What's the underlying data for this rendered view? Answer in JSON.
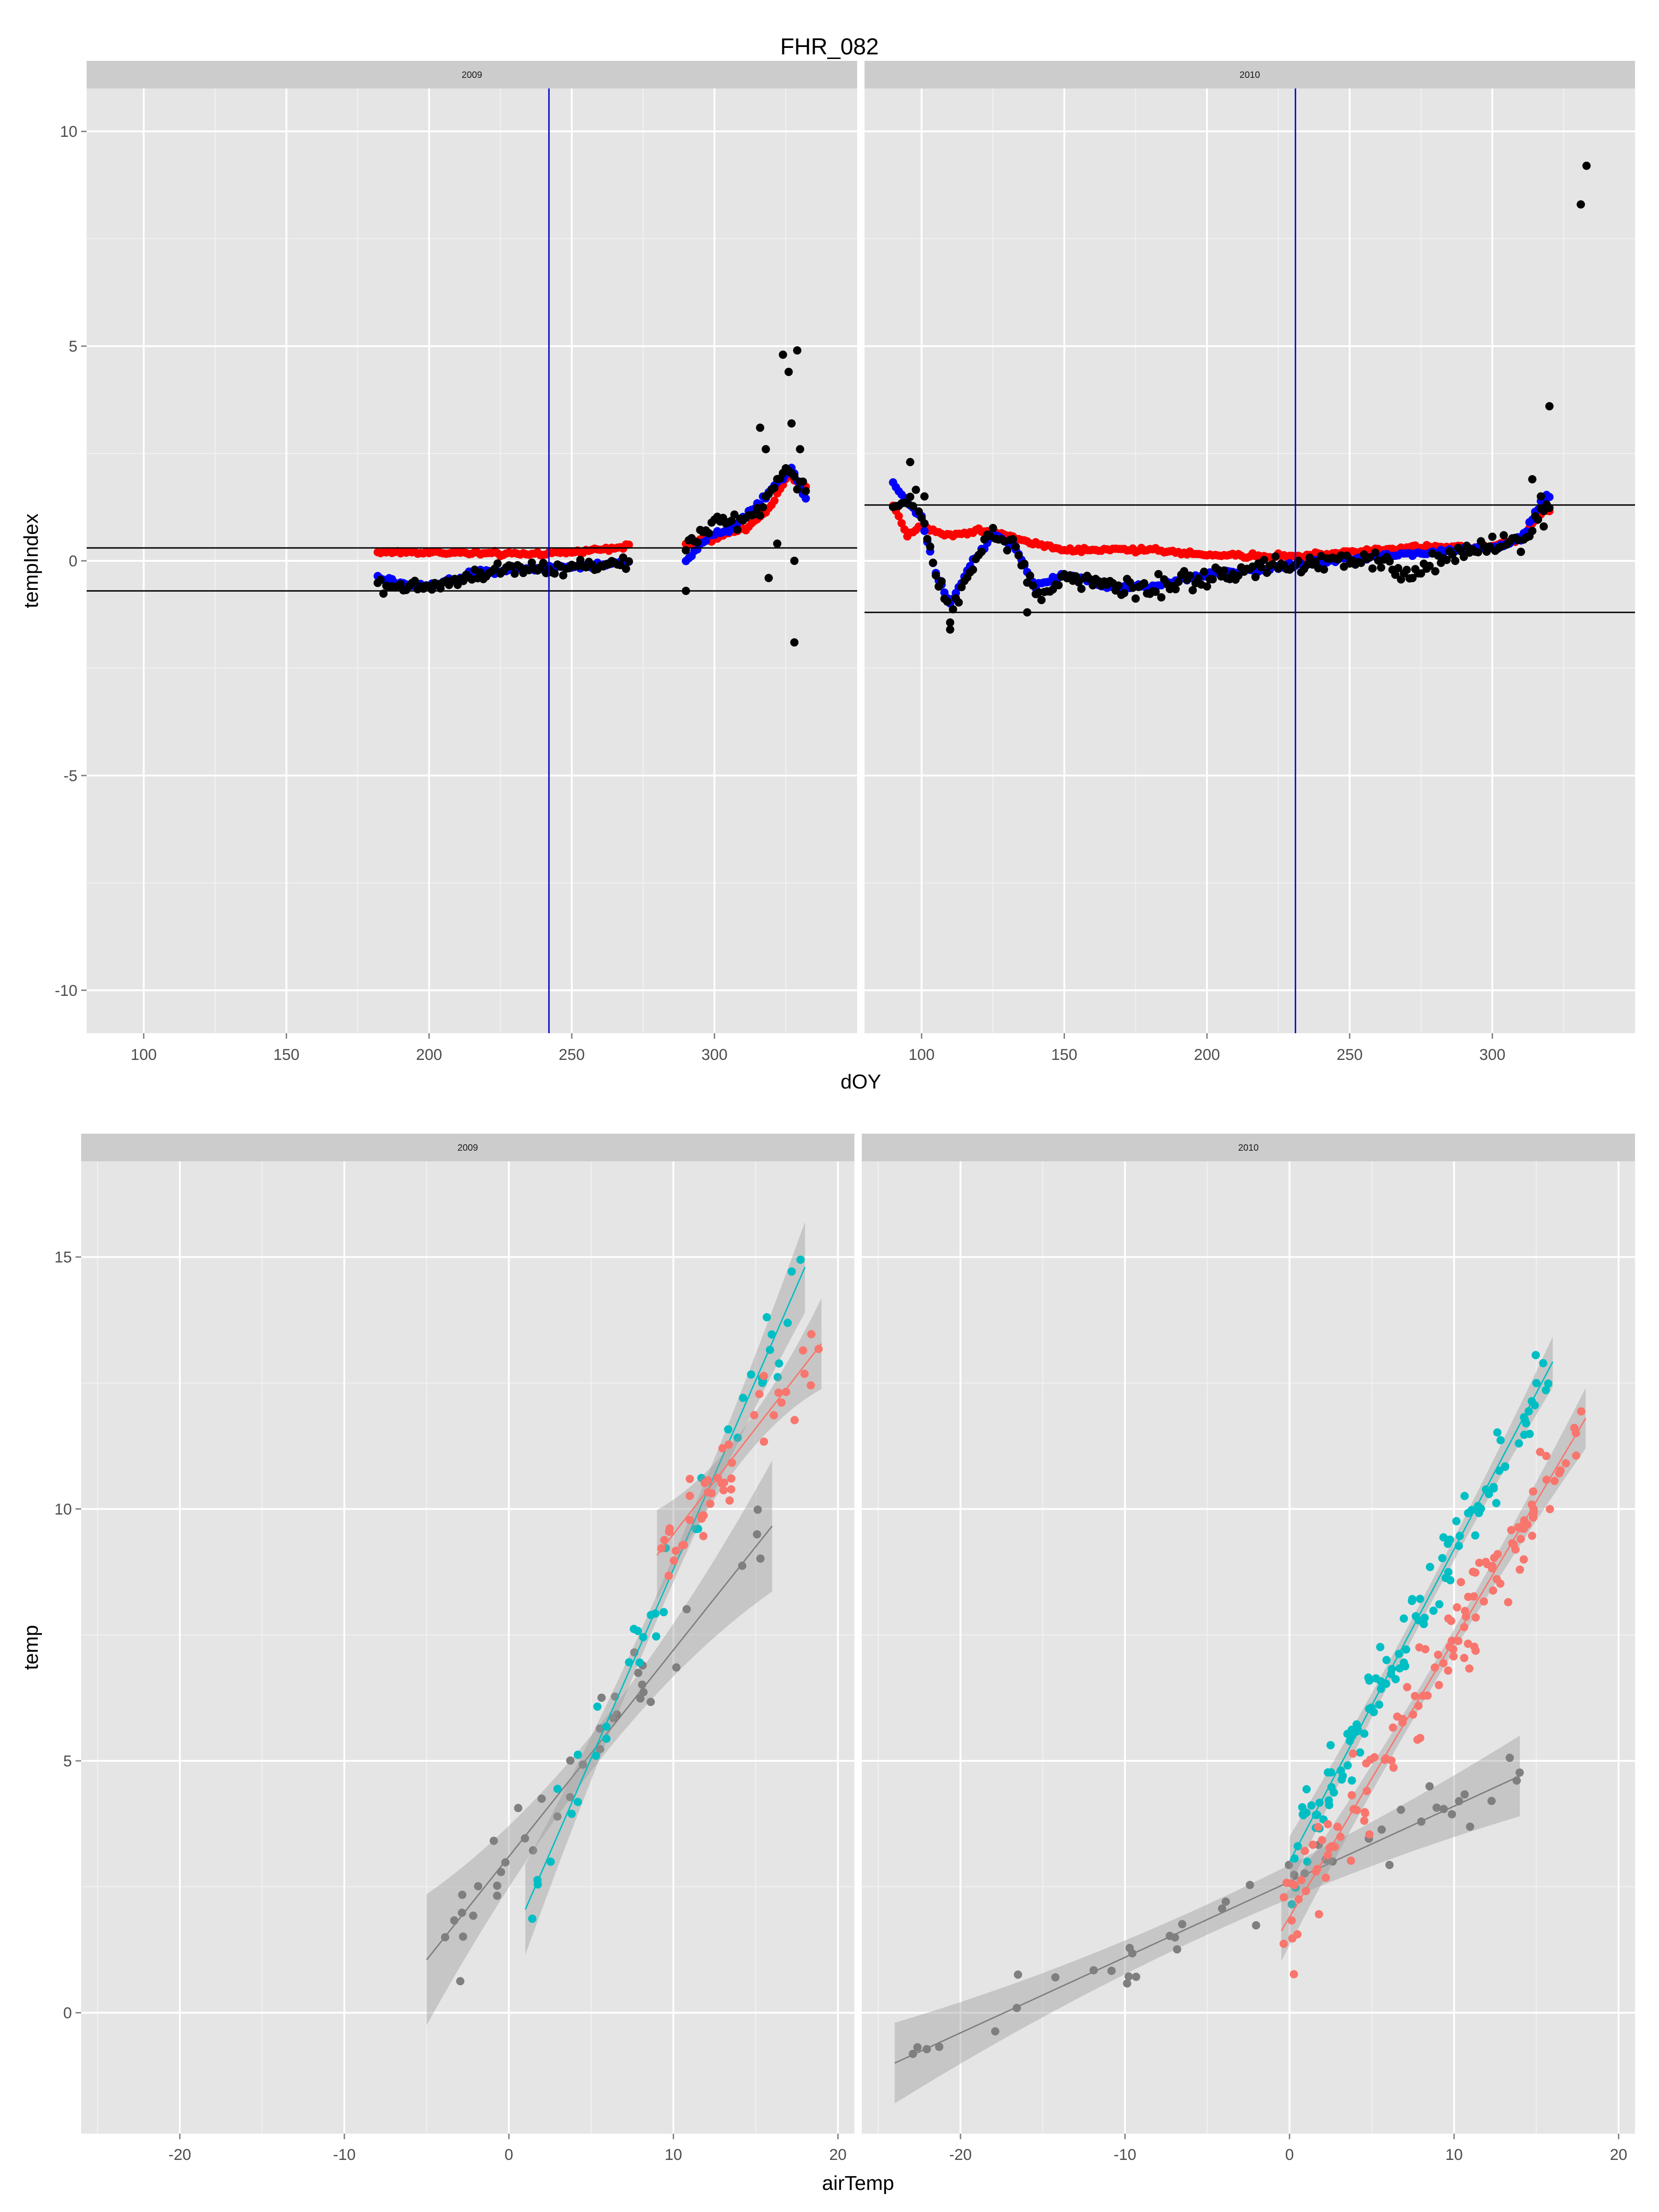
{
  "figure_title": "FHR_082",
  "colors": {
    "panel_bg": "#E5E5E5",
    "strip_bg": "#CCCCCC",
    "grid_major": "#FFFFFF",
    "grid_minor": "#F2F2F2",
    "tick_text": "#4D4D4D",
    "ref_line": "#000000",
    "vline": "#0000CC",
    "series_red": "#FF0000",
    "series_blue": "#0000FF",
    "series_black": "#000000",
    "teal": "#00BFC4",
    "salmon": "#F8766D",
    "gray": "#7F7F7F",
    "band": "#999999"
  },
  "chart_data": [
    {
      "type": "scatter",
      "xlabel": "dOY",
      "ylabel": "tempIndex",
      "xlim": [
        80,
        350
      ],
      "ylim": [
        -11,
        11
      ],
      "x_ticks": [
        100,
        150,
        200,
        250,
        300
      ],
      "y_ticks": [
        -10,
        -5,
        0,
        5,
        10
      ],
      "grid": true,
      "facets": [
        {
          "label": "2009",
          "ranges": [
            [
              182,
              270
            ],
            [
              290,
              332
            ]
          ],
          "hlines": [
            0.3,
            -0.7
          ],
          "vline": 242,
          "anchors_red": [
            [
              182,
              0.2
            ],
            [
              200,
              0.2
            ],
            [
              230,
              0.15
            ],
            [
              250,
              0.2
            ],
            [
              270,
              0.35
            ],
            [
              290,
              0.4
            ],
            [
              300,
              0.5
            ],
            [
              312,
              0.8
            ],
            [
              320,
              1.3
            ],
            [
              326,
              2.0
            ],
            [
              332,
              1.7
            ]
          ],
          "anchors_blue": [
            [
              182,
              -0.4
            ],
            [
              195,
              -0.6
            ],
            [
              205,
              -0.5
            ],
            [
              215,
              -0.3
            ],
            [
              230,
              -0.2
            ],
            [
              245,
              -0.15
            ],
            [
              260,
              -0.1
            ],
            [
              270,
              0.0
            ],
            [
              290,
              0.0
            ],
            [
              298,
              0.6
            ],
            [
              305,
              0.7
            ],
            [
              315,
              1.3
            ],
            [
              322,
              1.8
            ],
            [
              327,
              2.2
            ],
            [
              332,
              1.4
            ]
          ],
          "anchors_black": [
            [
              182,
              -0.5
            ],
            [
              195,
              -0.6
            ],
            [
              205,
              -0.5
            ],
            [
              215,
              -0.35
            ],
            [
              230,
              -0.15
            ],
            [
              245,
              -0.15
            ],
            [
              260,
              -0.1
            ],
            [
              270,
              0.0
            ],
            [
              290,
              0.3
            ],
            [
              300,
              0.9
            ],
            [
              310,
              0.9
            ],
            [
              318,
              1.4
            ],
            [
              325,
              2.2
            ],
            [
              332,
              1.6
            ]
          ],
          "noise_black": 0.18,
          "outliers_black": [
            [
              290,
              -0.7
            ],
            [
              316,
              3.1
            ],
            [
              318,
              2.6
            ],
            [
              324,
              4.8
            ],
            [
              326,
              4.4
            ],
            [
              327,
              3.2
            ],
            [
              329,
              4.9
            ],
            [
              330,
              2.6
            ],
            [
              328,
              0.0
            ],
            [
              328,
              -1.9
            ],
            [
              322,
              0.4
            ],
            [
              319,
              -0.4
            ]
          ]
        },
        {
          "label": "2010",
          "ranges": [
            [
              90,
              320
            ]
          ],
          "hlines": [
            1.3,
            -1.2
          ],
          "vline": 231,
          "anchors_red": [
            [
              90,
              1.3
            ],
            [
              95,
              0.6
            ],
            [
              100,
              0.8
            ],
            [
              110,
              0.6
            ],
            [
              120,
              0.7
            ],
            [
              130,
              0.6
            ],
            [
              140,
              0.4
            ],
            [
              150,
              0.25
            ],
            [
              180,
              0.25
            ],
            [
              200,
              0.15
            ],
            [
              220,
              0.1
            ],
            [
              240,
              0.15
            ],
            [
              270,
              0.3
            ],
            [
              300,
              0.35
            ],
            [
              310,
              0.5
            ],
            [
              318,
              1.2
            ]
          ],
          "anchors_blue": [
            [
              90,
              1.8
            ],
            [
              100,
              1.0
            ],
            [
              105,
              -0.3
            ],
            [
              110,
              -1.0
            ],
            [
              118,
              0.0
            ],
            [
              125,
              0.6
            ],
            [
              132,
              0.4
            ],
            [
              140,
              -0.6
            ],
            [
              150,
              -0.3
            ],
            [
              165,
              -0.6
            ],
            [
              180,
              -0.6
            ],
            [
              200,
              -0.3
            ],
            [
              220,
              -0.2
            ],
            [
              240,
              0.0
            ],
            [
              260,
              0.1
            ],
            [
              280,
              0.2
            ],
            [
              300,
              0.3
            ],
            [
              310,
              0.5
            ],
            [
              318,
              1.5
            ]
          ],
          "anchors_black": [
            [
              90,
              1.3
            ],
            [
              98,
              1.5
            ],
            [
              105,
              -0.2
            ],
            [
              110,
              -1.3
            ],
            [
              118,
              0.0
            ],
            [
              125,
              0.7
            ],
            [
              132,
              0.4
            ],
            [
              140,
              -0.8
            ],
            [
              150,
              -0.4
            ],
            [
              165,
              -0.6
            ],
            [
              180,
              -0.7
            ],
            [
              200,
              -0.4
            ],
            [
              220,
              -0.2
            ],
            [
              240,
              0.0
            ],
            [
              260,
              0.0
            ],
            [
              270,
              -0.4
            ],
            [
              280,
              0.0
            ],
            [
              300,
              0.4
            ],
            [
              310,
              0.4
            ],
            [
              318,
              1.3
            ]
          ],
          "noise_black": 0.22,
          "outliers_black": [
            [
              96,
              2.3
            ],
            [
              101,
              1.5
            ],
            [
              110,
              -1.6
            ],
            [
              137,
              -1.2
            ],
            [
              314,
              1.9
            ],
            [
              317,
              1.5
            ],
            [
              318,
              0.8
            ],
            [
              320,
              3.6
            ],
            [
              331,
              8.3
            ],
            [
              333,
              9.2
            ]
          ]
        }
      ]
    },
    {
      "type": "scatter",
      "xlabel": "airTemp",
      "ylabel": "temp",
      "xlim": [
        -26,
        21
      ],
      "ylim": [
        -2.4,
        16.9
      ],
      "x_ticks": [
        -20,
        -10,
        0,
        10,
        20
      ],
      "y_ticks": [
        0,
        5,
        10,
        15
      ],
      "grid": true,
      "facets": [
        {
          "label": "2009",
          "groups": [
            {
              "color": "gray",
              "x0": -5,
              "x1": 16,
              "slope": 0.41,
              "intercept": 3.1,
              "band_mid": 0.35,
              "band_end": 1.3,
              "n": 40,
              "spread": 0.9
            },
            {
              "color": "teal",
              "x0": 1,
              "x1": 18,
              "slope": 0.75,
              "intercept": 1.3,
              "band_mid": 0.25,
              "band_end": 0.9,
              "n": 40,
              "spread": 0.8
            },
            {
              "color": "salmon",
              "x0": 9,
              "x1": 19,
              "slope": 0.42,
              "intercept": 5.3,
              "band_mid": 0.3,
              "band_end": 0.9,
              "n": 45,
              "spread": 0.9
            }
          ]
        },
        {
          "label": "2010",
          "groups": [
            {
              "color": "gray",
              "x0": -24,
              "x1": 14,
              "slope": 0.15,
              "intercept": 2.6,
              "band_mid": 0.3,
              "band_end": 0.8,
              "n": 45,
              "spread": 0.6
            },
            {
              "color": "teal",
              "x0": 0,
              "x1": 16,
              "slope": 0.62,
              "intercept": 3.0,
              "band_mid": 0.2,
              "band_end": 0.5,
              "n": 110,
              "spread": 0.8
            },
            {
              "color": "salmon",
              "x0": -0.5,
              "x1": 18,
              "slope": 0.55,
              "intercept": 1.9,
              "band_mid": 0.2,
              "band_end": 0.6,
              "n": 130,
              "spread": 1.0
            }
          ]
        }
      ]
    }
  ]
}
